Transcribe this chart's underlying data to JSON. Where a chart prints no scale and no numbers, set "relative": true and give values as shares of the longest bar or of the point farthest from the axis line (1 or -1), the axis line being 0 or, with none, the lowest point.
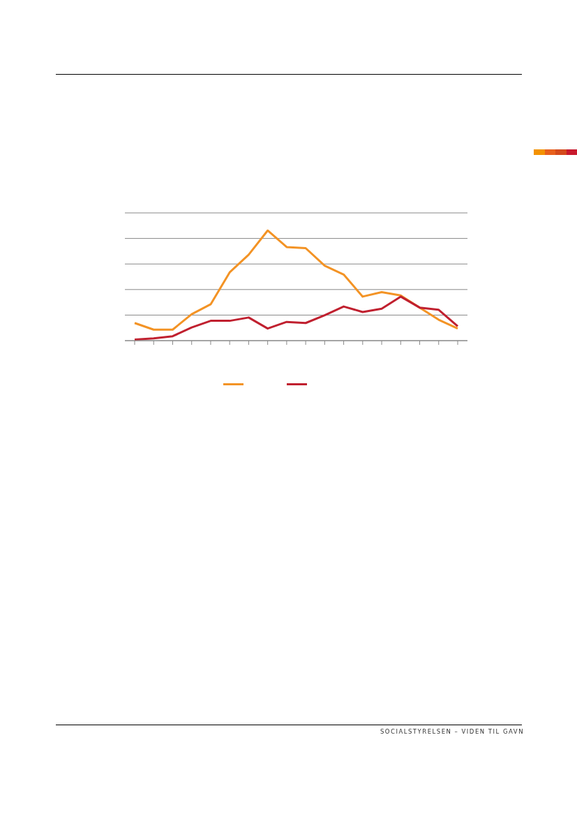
{
  "chart_data": {
    "type": "line",
    "relative": true,
    "categories": [
      null,
      null,
      null,
      null,
      null,
      null,
      null,
      null,
      null,
      null,
      null,
      null,
      null,
      null,
      null,
      null,
      null,
      null
    ],
    "series": [
      {
        "color": "#f39325",
        "values": [
          0.16,
          0.1,
          0.1,
          0.24,
          0.33,
          0.62,
          0.78,
          1,
          0.85,
          0.84,
          0.68,
          0.6,
          0.4,
          0.44,
          0.41,
          0.3,
          0.19,
          0.11
        ]
      },
      {
        "color": "#c0202f",
        "values": [
          0.01,
          0.02,
          0.04,
          0.12,
          0.18,
          0.18,
          0.21,
          0.11,
          0.17,
          0.16,
          0.23,
          0.31,
          0.26,
          0.29,
          0.4,
          0.3,
          0.28,
          0.13
        ]
      }
    ],
    "grid": "y",
    "marker": "none",
    "line_style": "solid",
    "annotations": [
      "SOCIALSTYRELSEN – VIDEN TIL GAVN"
    ]
  }
}
